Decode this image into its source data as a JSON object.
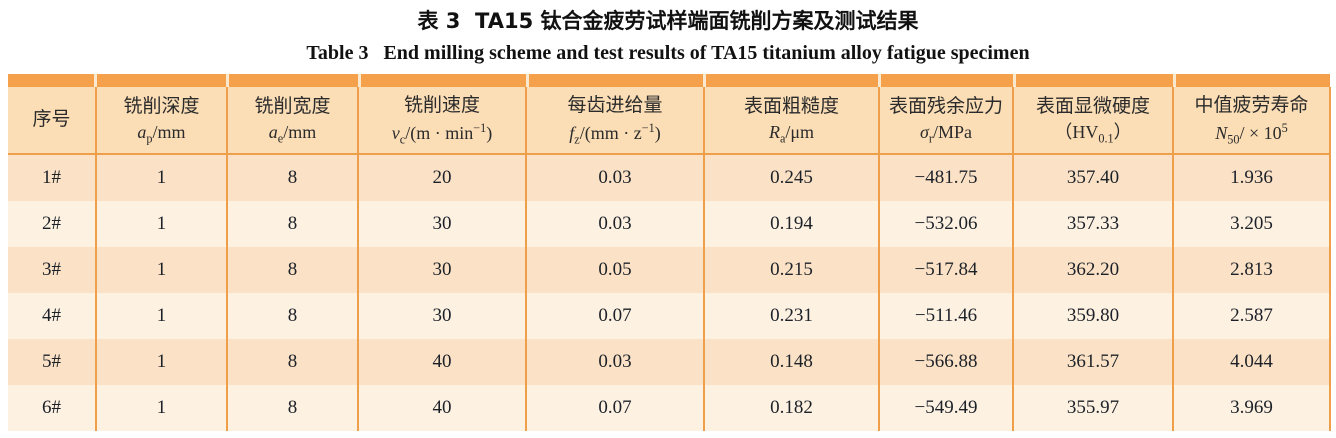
{
  "titles": {
    "zh": "表 3  TA15 钛合金疲劳试样端面铣削方案及测试结果",
    "en": "Table 3   End milling scheme and test results of TA15 titanium alloy fatigue specimen"
  },
  "colors": {
    "band_orange": "#F5A14C",
    "separator_orange": "#EF9F4A",
    "header_bg": "#FBDDB6",
    "row_odd_bg": "#FBE2C6",
    "row_even_bg": "#FDF1E2",
    "text": "#1c2128"
  },
  "table": {
    "columns": [
      {
        "label": "序号",
        "unit": ""
      },
      {
        "label": "铣削深度",
        "unit": "<i>a</i><sub>p</sub>/mm"
      },
      {
        "label": "铣削宽度",
        "unit": "<i>a</i><sub>e</sub>/mm"
      },
      {
        "label": "铣削速度",
        "unit": "<i>v</i><sub>c</sub>/(m · min<sup>−1</sup>)"
      },
      {
        "label": "每齿进给量",
        "unit": "<i>f</i><sub>z</sub>/(mm · z<sup>−1</sup>)"
      },
      {
        "label": "表面粗糙度",
        "unit": "<i>R</i><sub>a</sub>/μm"
      },
      {
        "label": "表面残余应力",
        "unit": "<i>σ</i><sub>r</sub>/MPa"
      },
      {
        "label": "表面显微硬度",
        "unit": "（HV<sub>0.1</sub>）"
      },
      {
        "label": "中值疲劳寿命",
        "unit": "<i>N</i><sub>50</sub>/ × 10<sup>5</sup>"
      }
    ],
    "rows": [
      [
        "1#",
        "1",
        "8",
        "20",
        "0.03",
        "0.245",
        "−481.75",
        "357.40",
        "1.936"
      ],
      [
        "2#",
        "1",
        "8",
        "30",
        "0.03",
        "0.194",
        "−532.06",
        "357.33",
        "3.205"
      ],
      [
        "3#",
        "1",
        "8",
        "30",
        "0.05",
        "0.215",
        "−517.84",
        "362.20",
        "2.813"
      ],
      [
        "4#",
        "1",
        "8",
        "30",
        "0.07",
        "0.231",
        "−511.46",
        "359.80",
        "2.587"
      ],
      [
        "5#",
        "1",
        "8",
        "40",
        "0.03",
        "0.148",
        "−566.88",
        "361.57",
        "4.044"
      ],
      [
        "6#",
        "1",
        "8",
        "40",
        "0.07",
        "0.182",
        "−549.49",
        "355.97",
        "3.969"
      ]
    ]
  }
}
